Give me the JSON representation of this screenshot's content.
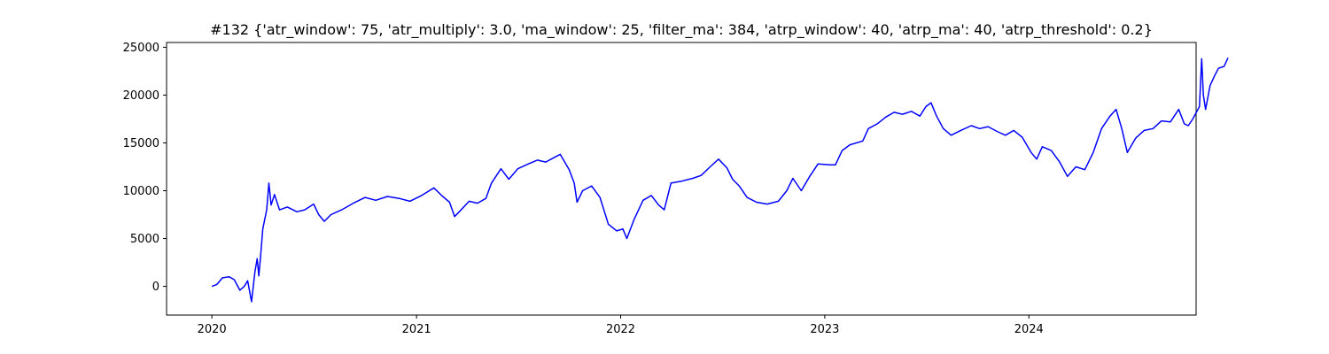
{
  "chart_data": {
    "type": "line",
    "title": "#132 {'atr_window': 75, 'atr_multiply': 3.0, 'ma_window': 25, 'filter_ma': 384, 'atrp_window': 40, 'atrp_ma': 40, 'atrp_threshold': 0.2}",
    "xlabel": "",
    "ylabel": "",
    "xlim": [
      "2019-10-12",
      "2024-10-26"
    ],
    "ylim": [
      -3000,
      25500
    ],
    "x_ticks": [
      "2020",
      "2021",
      "2022",
      "2023",
      "2024"
    ],
    "y_ticks": [
      "0",
      "5000",
      "10000",
      "15000",
      "20000",
      "25000"
    ],
    "grid": false,
    "legend": "none",
    "series": [
      {
        "color": "#0000ff",
        "points": [
          [
            "2020-01-01",
            0
          ],
          [
            "2020-01-10",
            200
          ],
          [
            "2020-01-20",
            900
          ],
          [
            "2020-02-01",
            1000
          ],
          [
            "2020-02-10",
            700
          ],
          [
            "2020-02-20",
            -400
          ],
          [
            "2020-02-28",
            0
          ],
          [
            "2020-03-05",
            600
          ],
          [
            "2020-03-12",
            -1600
          ],
          [
            "2020-03-18",
            1500
          ],
          [
            "2020-03-22",
            2900
          ],
          [
            "2020-03-25",
            1100
          ],
          [
            "2020-03-28",
            3000
          ],
          [
            "2020-04-01",
            6000
          ],
          [
            "2020-04-08",
            8000
          ],
          [
            "2020-04-12",
            10800
          ],
          [
            "2020-04-16",
            8500
          ],
          [
            "2020-04-22",
            9600
          ],
          [
            "2020-05-01",
            8000
          ],
          [
            "2020-05-15",
            8300
          ],
          [
            "2020-06-01",
            7800
          ],
          [
            "2020-06-15",
            8000
          ],
          [
            "2020-07-01",
            8600
          ],
          [
            "2020-07-10",
            7500
          ],
          [
            "2020-07-20",
            6800
          ],
          [
            "2020-08-01",
            7500
          ],
          [
            "2020-08-20",
            8000
          ],
          [
            "2020-09-10",
            8700
          ],
          [
            "2020-10-01",
            9300
          ],
          [
            "2020-10-20",
            9000
          ],
          [
            "2020-11-10",
            9400
          ],
          [
            "2020-12-01",
            9200
          ],
          [
            "2020-12-20",
            8900
          ],
          [
            "2021-01-10",
            9500
          ],
          [
            "2021-02-01",
            10300
          ],
          [
            "2021-02-15",
            9500
          ],
          [
            "2021-03-01",
            8800
          ],
          [
            "2021-03-10",
            7300
          ],
          [
            "2021-03-20",
            7900
          ],
          [
            "2021-04-05",
            8900
          ],
          [
            "2021-04-20",
            8700
          ],
          [
            "2021-05-05",
            9200
          ],
          [
            "2021-05-15",
            10800
          ],
          [
            "2021-06-01",
            12300
          ],
          [
            "2021-06-15",
            11200
          ],
          [
            "2021-07-01",
            12300
          ],
          [
            "2021-07-20",
            12800
          ],
          [
            "2021-08-05",
            13200
          ],
          [
            "2021-08-20",
            13000
          ],
          [
            "2021-09-05",
            13500
          ],
          [
            "2021-09-15",
            13800
          ],
          [
            "2021-10-01",
            12200
          ],
          [
            "2021-10-10",
            10800
          ],
          [
            "2021-10-15",
            8800
          ],
          [
            "2021-10-25",
            10000
          ],
          [
            "2021-11-10",
            10500
          ],
          [
            "2021-11-25",
            9300
          ],
          [
            "2021-12-10",
            6500
          ],
          [
            "2021-12-25",
            5800
          ],
          [
            "2022-01-05",
            6000
          ],
          [
            "2022-01-12",
            5000
          ],
          [
            "2022-01-25",
            7000
          ],
          [
            "2022-02-10",
            9000
          ],
          [
            "2022-02-25",
            9500
          ],
          [
            "2022-03-10",
            8500
          ],
          [
            "2022-03-20",
            8000
          ],
          [
            "2022-04-01",
            10800
          ],
          [
            "2022-04-20",
            11000
          ],
          [
            "2022-05-10",
            11300
          ],
          [
            "2022-05-25",
            11600
          ],
          [
            "2022-06-10",
            12500
          ],
          [
            "2022-06-25",
            13300
          ],
          [
            "2022-07-10",
            12400
          ],
          [
            "2022-07-20",
            11200
          ],
          [
            "2022-08-01",
            10500
          ],
          [
            "2022-08-15",
            9300
          ],
          [
            "2022-09-01",
            8800
          ],
          [
            "2022-09-20",
            8600
          ],
          [
            "2022-10-10",
            8900
          ],
          [
            "2022-10-25",
            10000
          ],
          [
            "2022-11-05",
            11300
          ],
          [
            "2022-11-20",
            10000
          ],
          [
            "2022-12-05",
            11500
          ],
          [
            "2022-12-20",
            12800
          ],
          [
            "2023-01-10",
            12700
          ],
          [
            "2023-01-20",
            12700
          ],
          [
            "2023-02-01",
            14200
          ],
          [
            "2023-02-15",
            14800
          ],
          [
            "2023-03-10",
            15200
          ],
          [
            "2023-03-20",
            16500
          ],
          [
            "2023-04-05",
            17000
          ],
          [
            "2023-04-20",
            17700
          ],
          [
            "2023-05-05",
            18200
          ],
          [
            "2023-05-20",
            18000
          ],
          [
            "2023-06-05",
            18300
          ],
          [
            "2023-06-20",
            17800
          ],
          [
            "2023-07-01",
            18800
          ],
          [
            "2023-07-10",
            19200
          ],
          [
            "2023-07-20",
            17800
          ],
          [
            "2023-08-01",
            16500
          ],
          [
            "2023-08-15",
            15800
          ],
          [
            "2023-09-01",
            16300
          ],
          [
            "2023-09-20",
            16800
          ],
          [
            "2023-10-05",
            16500
          ],
          [
            "2023-10-20",
            16700
          ],
          [
            "2023-11-05",
            16200
          ],
          [
            "2023-11-20",
            15800
          ],
          [
            "2023-12-05",
            16300
          ],
          [
            "2023-12-20",
            15600
          ],
          [
            "2024-01-05",
            14000
          ],
          [
            "2024-01-15",
            13300
          ],
          [
            "2024-01-25",
            14600
          ],
          [
            "2024-02-10",
            14200
          ],
          [
            "2024-02-25",
            13000
          ],
          [
            "2024-03-10",
            11500
          ],
          [
            "2024-03-25",
            12500
          ],
          [
            "2024-04-10",
            12200
          ],
          [
            "2024-04-25",
            14000
          ],
          [
            "2024-05-10",
            16500
          ],
          [
            "2024-05-25",
            17800
          ],
          [
            "2024-06-05",
            18500
          ],
          [
            "2024-06-15",
            16500
          ],
          [
            "2024-06-25",
            14000
          ],
          [
            "2024-07-10",
            15500
          ],
          [
            "2024-07-25",
            16300
          ],
          [
            "2024-08-10",
            16500
          ],
          [
            "2024-08-25",
            17300
          ],
          [
            "2024-09-10",
            17200
          ],
          [
            "2024-09-25",
            18500
          ],
          [
            "2024-10-05",
            17000
          ],
          [
            "2024-10-12",
            16800
          ],
          [
            "2024-10-20",
            17500
          ],
          [
            "2024-11-01",
            18800
          ],
          [
            "2024-11-05",
            23800
          ],
          [
            "2024-11-08",
            20000
          ],
          [
            "2024-11-12",
            18500
          ],
          [
            "2024-11-20",
            21000
          ],
          [
            "2024-11-28",
            22000
          ],
          [
            "2024-12-05",
            22800
          ],
          [
            "2024-12-15",
            23000
          ],
          [
            "2024-12-22",
            23900
          ]
        ]
      }
    ]
  }
}
